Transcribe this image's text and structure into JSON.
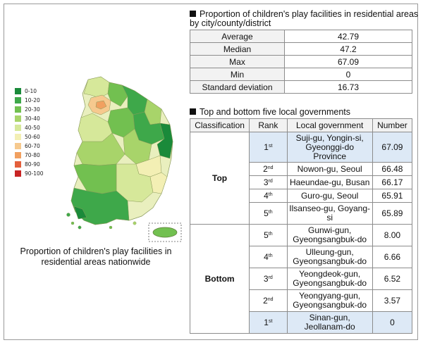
{
  "map": {
    "caption_line1": "Proportion of children's play facilities in",
    "caption_line2": "residential areas nationwide",
    "legend": [
      {
        "label": "0-10",
        "color": "#1a8a3a"
      },
      {
        "label": "10-20",
        "color": "#3ea84a"
      },
      {
        "label": "20-30",
        "color": "#72c050"
      },
      {
        "label": "30-40",
        "color": "#a8d46a"
      },
      {
        "label": "40-50",
        "color": "#d6e89a"
      },
      {
        "label": "50-60",
        "color": "#f3efb4"
      },
      {
        "label": "60-70",
        "color": "#f6c98e"
      },
      {
        "label": "70-80",
        "color": "#f1a060"
      },
      {
        "label": "80-90",
        "color": "#e4603c"
      },
      {
        "label": "90-100",
        "color": "#c82424"
      }
    ]
  },
  "stats": {
    "title_line1": "Proportion of children's play facilities in residential areas",
    "title_line2": "by city/county/district",
    "rows": [
      {
        "label": "Average",
        "value": "42.79"
      },
      {
        "label": "Median",
        "value": "47.2"
      },
      {
        "label": "Max",
        "value": "67.09"
      },
      {
        "label": "Min",
        "value": "0"
      },
      {
        "label": "Standard deviation",
        "value": "16.73"
      }
    ]
  },
  "ranking": {
    "title": "Top and bottom five local governments",
    "headers": [
      "Classification",
      "Rank",
      "Local government",
      "Number"
    ],
    "top_label": "Top",
    "bottom_label": "Bottom",
    "top": [
      {
        "rank": "1",
        "suffix": "st",
        "gov": "Suji-gu, Yongin-si, Gyeonggi-do Province",
        "num": "67.09"
      },
      {
        "rank": "2",
        "suffix": "nd",
        "gov": "Nowon-gu, Seoul",
        "num": "66.48"
      },
      {
        "rank": "3",
        "suffix": "rd",
        "gov": "Haeundae-gu, Busan",
        "num": "66.17"
      },
      {
        "rank": "4",
        "suffix": "th",
        "gov": "Guro-gu, Seoul",
        "num": "65.91"
      },
      {
        "rank": "5",
        "suffix": "th",
        "gov": "Ilsanseo-gu, Goyang-si",
        "num": "65.89"
      }
    ],
    "bottom": [
      {
        "rank": "5",
        "suffix": "th",
        "gov": "Gunwi-gun, Gyeongsangbuk-do",
        "num": "8.00"
      },
      {
        "rank": "4",
        "suffix": "th",
        "gov": "Ulleung-gun, Gyeongsangbuk-do",
        "num": "6.66"
      },
      {
        "rank": "3",
        "suffix": "rd",
        "gov": "Yeongdeok-gun, Gyeongsangbuk-do",
        "num": "6.52"
      },
      {
        "rank": "2",
        "suffix": "nd",
        "gov": "Yeongyang-gun, Gyeongsangbuk-do",
        "num": "3.57"
      },
      {
        "rank": "1",
        "suffix": "st",
        "gov": "Sinan-gun, Jeollanam-do",
        "num": "0"
      }
    ]
  }
}
